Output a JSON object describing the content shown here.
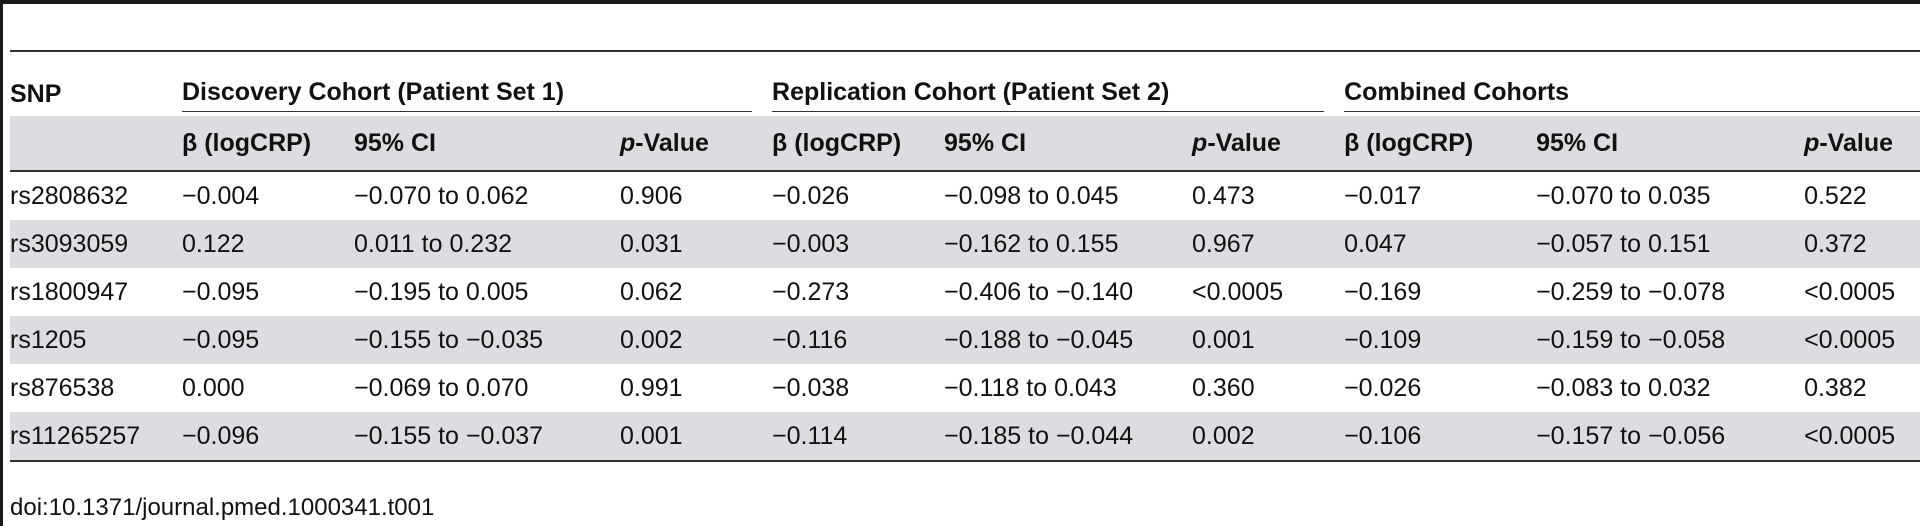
{
  "table": {
    "snp_header": "SNP",
    "groups": [
      "Discovery Cohort (Patient Set 1)",
      "Replication Cohort (Patient Set 2)",
      "Combined Cohorts"
    ],
    "subheaders": {
      "beta": "β (logCRP)",
      "ci": "95% CI",
      "p_italic": "p",
      "p_rest": "-Value"
    },
    "rows": [
      {
        "snp": "rs2808632",
        "cells": [
          "−0.004",
          "−0.070 to 0.062",
          "0.906",
          "−0.026",
          "−0.098 to 0.045",
          "0.473",
          "−0.017",
          "−0.070 to 0.035",
          "0.522"
        ]
      },
      {
        "snp": "rs3093059",
        "cells": [
          "0.122",
          "0.011 to 0.232",
          "0.031",
          "−0.003",
          "−0.162 to 0.155",
          "0.967",
          "0.047",
          "−0.057 to 0.151",
          "0.372"
        ]
      },
      {
        "snp": "rs1800947",
        "cells": [
          "−0.095",
          "−0.195 to 0.005",
          "0.062",
          "−0.273",
          "−0.406 to −0.140",
          "<0.0005",
          "−0.169",
          "−0.259 to −0.078",
          "<0.0005"
        ]
      },
      {
        "snp": "rs1205",
        "cells": [
          "−0.095",
          "−0.155 to −0.035",
          "0.002",
          "−0.116",
          "−0.188 to −0.045",
          "0.001",
          "−0.109",
          "−0.159 to −0.058",
          "<0.0005"
        ]
      },
      {
        "snp": "rs876538",
        "cells": [
          "0.000",
          "−0.069 to 0.070",
          "0.991",
          "−0.038",
          "−0.118 to 0.043",
          "0.360",
          "−0.026",
          "−0.083 to 0.032",
          "0.382"
        ]
      },
      {
        "snp": "rs11265257",
        "cells": [
          "−0.096",
          "−0.155 to −0.037",
          "0.001",
          "−0.114",
          "−0.185 to −0.044",
          "0.002",
          "−0.106",
          "−0.157 to −0.056",
          "<0.0005"
        ]
      }
    ]
  },
  "footer": {
    "doi": "doi:10.1371/journal.pmed.1000341.t001"
  }
}
